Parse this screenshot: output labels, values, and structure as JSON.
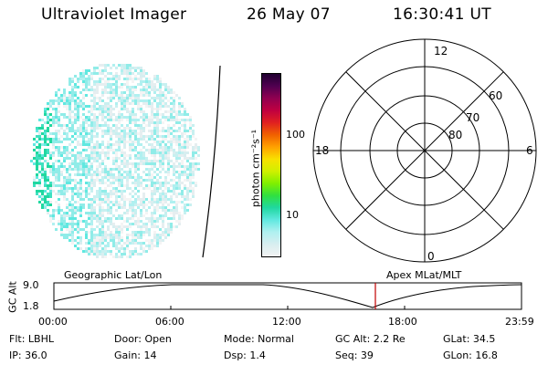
{
  "header": {
    "title": "Ultraviolet Imager",
    "date": "26 May 07",
    "time": "16:30:41 UT"
  },
  "colorbar": {
    "unit_label": "photon cm⁻²s⁻¹",
    "ticks": [
      "100",
      "10"
    ],
    "colors": [
      "#f2f2f2",
      "#d8eef0",
      "#b0f0f0",
      "#60e8e0",
      "#20d8a0",
      "#30e040",
      "#80f000",
      "#d0f000",
      "#f8e000",
      "#ffa000",
      "#f06000",
      "#e02020",
      "#c00040",
      "#900050",
      "#500050",
      "#200030"
    ]
  },
  "polar": {
    "mlt_labels": {
      "top": "12",
      "left": "18",
      "right": "6",
      "bottom": "0"
    },
    "lat_labels": [
      "60",
      "70",
      "80"
    ]
  },
  "timeline": {
    "ylabel": "GC Alt",
    "y_ticks": [
      "9.0",
      "1.8"
    ],
    "left_title": "Geographic Lat/Lon",
    "right_title": "Apex MLat/MLT",
    "x_ticks": [
      "00:00",
      "06:00",
      "12:00",
      "18:00",
      "23:59"
    ],
    "marker_color": "#c00000"
  },
  "info": {
    "flt": "Flt: LBHL",
    "ip": "IP: 36.0",
    "door": "Door: Open",
    "gain": "Gain: 14",
    "mode": "Mode: Normal",
    "dsp": "Dsp:     1.4",
    "gcalt": "GC Alt: 2.2 Re",
    "seq": "Seq: 39",
    "glat": "GLat:   34.5",
    "glon": "GLon:   16.8"
  }
}
